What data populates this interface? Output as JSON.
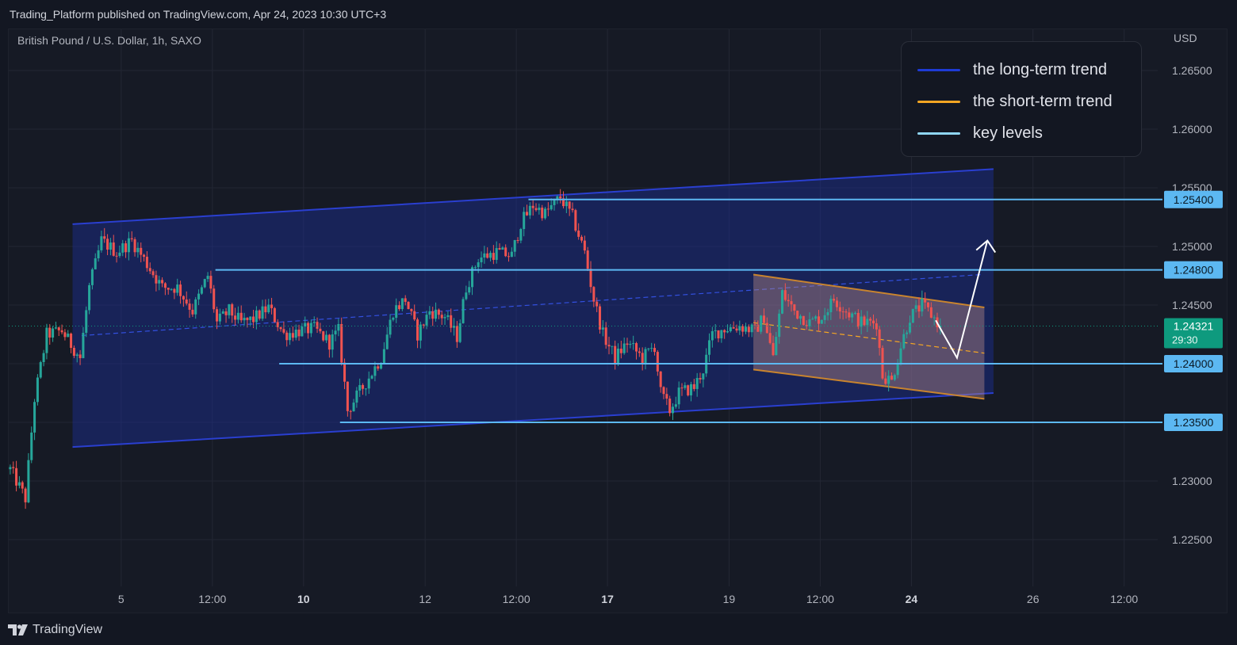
{
  "header": {
    "publisher": "Trading_Platform published on TradingView.com, Apr 24, 2023 10:30 UTC+3"
  },
  "symbol": "British Pound / U.S. Dollar, 1h, SAXO",
  "currency": "USD",
  "footer": {
    "brand": "TradingView",
    "logo_icon": "tradingview-logo-icon"
  },
  "legend": [
    {
      "label": "the long-term trend",
      "color": "#1e3bd6"
    },
    {
      "label": "the short-term trend",
      "color": "#f5a623"
    },
    {
      "label": "key levels",
      "color": "#8fd6f5"
    }
  ],
  "colors": {
    "up": "#26a69a",
    "down": "#ef5350",
    "key_level": "#5cb8f2",
    "channel": "#1d2fa0",
    "short_channel": "#c9842e",
    "price_tag": "#0e9a7e",
    "arrow": "#ffffff"
  },
  "chart_data": {
    "type": "candlestick",
    "instrument": "GBPUSD",
    "timeframe": "1h",
    "xlabel": "",
    "ylabel": "",
    "ylim": [
      1.2175,
      1.2685
    ],
    "y_ticks": [
      1.265,
      1.26,
      1.255,
      1.25,
      1.245,
      1.24,
      1.235,
      1.23,
      1.225
    ],
    "y_tick_labels": [
      "1.26500",
      "1.26000",
      "1.25500",
      "1.25000",
      "1.24500",
      "1.24000",
      "1.23500",
      "1.23000",
      "1.22500"
    ],
    "x_ticks": [
      {
        "label": "5",
        "bar": 37,
        "bold": false
      },
      {
        "label": "12:00",
        "bar": 67,
        "bold": false
      },
      {
        "label": "10",
        "bar": 97,
        "bold": true
      },
      {
        "label": "12",
        "bar": 137,
        "bold": false
      },
      {
        "label": "12:00",
        "bar": 167,
        "bold": false
      },
      {
        "label": "17",
        "bar": 197,
        "bold": true
      },
      {
        "label": "19",
        "bar": 237,
        "bold": false
      },
      {
        "label": "12:00",
        "bar": 267,
        "bold": false
      },
      {
        "label": "24",
        "bar": 297,
        "bold": true
      },
      {
        "label": "26",
        "bar": 337,
        "bold": false
      },
      {
        "label": "12:00",
        "bar": 367,
        "bold": false
      }
    ],
    "price_path": [
      [
        0,
        1.231
      ],
      [
        5,
        1.2285
      ],
      [
        8,
        1.237
      ],
      [
        12,
        1.2425
      ],
      [
        17,
        1.2428
      ],
      [
        23,
        1.2405
      ],
      [
        26,
        1.2465
      ],
      [
        30,
        1.2505
      ],
      [
        35,
        1.2495
      ],
      [
        40,
        1.2505
      ],
      [
        45,
        1.2485
      ],
      [
        50,
        1.2465
      ],
      [
        55,
        1.2465
      ],
      [
        60,
        1.2445
      ],
      [
        65,
        1.2475
      ],
      [
        68,
        1.2435
      ],
      [
        72,
        1.2445
      ],
      [
        76,
        1.2435
      ],
      [
        80,
        1.2438
      ],
      [
        85,
        1.2448
      ],
      [
        90,
        1.2425
      ],
      [
        95,
        1.2428
      ],
      [
        100,
        1.243
      ],
      [
        105,
        1.2418
      ],
      [
        108,
        1.2428
      ],
      [
        111,
        1.236
      ],
      [
        116,
        1.238
      ],
      [
        122,
        1.2405
      ],
      [
        126,
        1.2445
      ],
      [
        130,
        1.2455
      ],
      [
        134,
        1.2425
      ],
      [
        138,
        1.2445
      ],
      [
        143,
        1.244
      ],
      [
        147,
        1.2423
      ],
      [
        150,
        1.2465
      ],
      [
        154,
        1.249
      ],
      [
        160,
        1.2495
      ],
      [
        165,
        1.2492
      ],
      [
        168,
        1.252
      ],
      [
        172,
        1.2535
      ],
      [
        176,
        1.2528
      ],
      [
        181,
        1.2542
      ],
      [
        185,
        1.2525
      ],
      [
        189,
        1.2495
      ],
      [
        192,
        1.2455
      ],
      [
        195,
        1.2425
      ],
      [
        199,
        1.2405
      ],
      [
        203,
        1.2418
      ],
      [
        208,
        1.2405
      ],
      [
        212,
        1.2415
      ],
      [
        214,
        1.2375
      ],
      [
        217,
        1.236
      ],
      [
        220,
        1.2375
      ],
      [
        225,
        1.238
      ],
      [
        228,
        1.2395
      ],
      [
        231,
        1.2425
      ],
      [
        235,
        1.243
      ],
      [
        240,
        1.2432
      ],
      [
        245,
        1.2428
      ],
      [
        248,
        1.244
      ],
      [
        251,
        1.2405
      ],
      [
        254,
        1.246
      ],
      [
        258,
        1.2445
      ],
      [
        263,
        1.2435
      ],
      [
        267,
        1.244
      ],
      [
        271,
        1.2455
      ],
      [
        275,
        1.2445
      ],
      [
        280,
        1.2435
      ],
      [
        285,
        1.2435
      ],
      [
        287,
        1.239
      ],
      [
        290,
        1.2385
      ],
      [
        293,
        1.2415
      ],
      [
        296,
        1.244
      ],
      [
        300,
        1.245
      ],
      [
        303,
        1.2442
      ],
      [
        306,
        1.2432
      ]
    ],
    "last_price": 1.24321,
    "last_price_label": "1.24321",
    "countdown": "29:30",
    "key_levels": [
      {
        "value": 1.254,
        "label": "1.25400",
        "from_bar": 171
      },
      {
        "value": 1.248,
        "label": "1.24800",
        "from_bar": 68
      },
      {
        "value": 1.24,
        "label": "1.24000",
        "from_bar": 89
      },
      {
        "value": 1.235,
        "label": "1.23500",
        "from_bar": 109
      }
    ],
    "long_term_channel": {
      "from_bar": 21,
      "to_bar": 324,
      "upper": [
        1.2519,
        1.2566
      ],
      "lower": [
        1.2329,
        1.2375
      ],
      "mid": [
        1.2424,
        1.2476
      ],
      "mid_from_bar": 24,
      "mid_to_bar": 320
    },
    "short_term_channel": {
      "from_bar": 245,
      "to_bar": 321,
      "upper": [
        1.2476,
        1.2448
      ],
      "lower": [
        1.2395,
        1.237
      ],
      "mid": [
        1.2435,
        1.2409
      ]
    },
    "projection_arrow": [
      [
        305,
        1.2437
      ],
      [
        312,
        1.2405
      ],
      [
        322,
        1.2505
      ]
    ]
  }
}
